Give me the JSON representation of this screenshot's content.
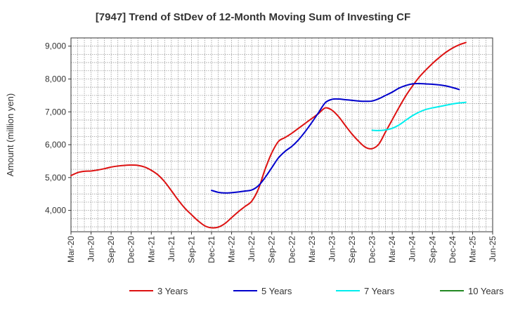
{
  "chart_data": {
    "type": "line",
    "title": "[7947]  Trend of StDev of 12-Month Moving Sum of Investing CF",
    "ylabel": "Amount (million yen)",
    "xlabel": "",
    "ylim": [
      3350,
      9250
    ],
    "yticks": [
      4000,
      5000,
      6000,
      7000,
      8000,
      9000
    ],
    "ytick_labels": [
      "4,000",
      "5,000",
      "6,000",
      "7,000",
      "8,000",
      "9,000"
    ],
    "x_labels": [
      "Mar-20",
      "Jun-20",
      "Sep-20",
      "Dec-20",
      "Mar-21",
      "Jun-21",
      "Sep-21",
      "Dec-21",
      "Mar-22",
      "Jun-22",
      "Sep-22",
      "Dec-22",
      "Mar-23",
      "Jun-23",
      "Sep-23",
      "Dec-23",
      "Mar-24",
      "Jun-24",
      "Sep-24",
      "Dec-24",
      "Mar-25",
      "Jun-25"
    ],
    "grid": true,
    "legend_position": "bottom",
    "colors": {
      "3 Years": "#dd1111",
      "5 Years": "#0000cc",
      "7 Years": "#00eeee",
      "10 Years": "#228822"
    },
    "series": [
      {
        "name": "3 Years",
        "color": "#dd1111",
        "start": "Mar-20",
        "values": [
          5060,
          5150,
          5190,
          5200,
          5230,
          5270,
          5320,
          5350,
          5370,
          5380,
          5370,
          5320,
          5220,
          5080,
          4870,
          4600,
          4320,
          4070,
          3870,
          3680,
          3530,
          3470,
          3490,
          3600,
          3780,
          3960,
          4120,
          4280,
          4650,
          5250,
          5750,
          6100,
          6220,
          6350,
          6500,
          6650,
          6800,
          6950,
          7120,
          7050,
          6850,
          6580,
          6320,
          6100,
          5920,
          5880,
          6020,
          6390,
          6760,
          7130,
          7480,
          7780,
          8050,
          8270,
          8470,
          8650,
          8810,
          8940,
          9040,
          9110
        ]
      },
      {
        "name": "5 Years",
        "color": "#0000cc",
        "start": "Dec-21",
        "values": [
          4610,
          4550,
          4530,
          4540,
          4560,
          4590,
          4620,
          4750,
          5000,
          5300,
          5600,
          5800,
          5950,
          6150,
          6400,
          6680,
          6980,
          7280,
          7380,
          7390,
          7370,
          7350,
          7330,
          7320,
          7330,
          7400,
          7500,
          7600,
          7720,
          7800,
          7850,
          7860,
          7850,
          7840,
          7820,
          7790,
          7740,
          7680
        ]
      },
      {
        "name": "7 Years",
        "color": "#00eeee",
        "start": "Dec-23",
        "values": [
          6440,
          6430,
          6450,
          6500,
          6600,
          6740,
          6880,
          6990,
          7070,
          7120,
          7160,
          7200,
          7240,
          7270,
          7290
        ]
      },
      {
        "name": "10 Years",
        "color": "#228822",
        "start": "",
        "values": []
      }
    ]
  }
}
